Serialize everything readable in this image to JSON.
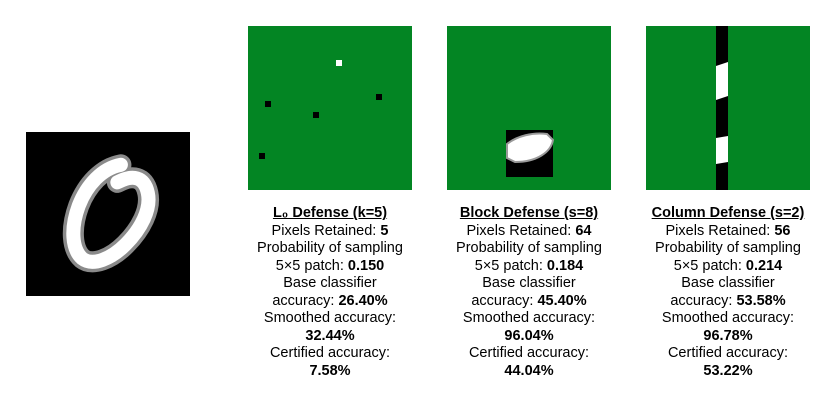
{
  "colors": {
    "green_mask": "#038523",
    "background": "#000000",
    "digit": "#ffffff"
  },
  "panels": [
    {
      "title": "L₀ Defense (k=5)",
      "pixels_label": "Pixels Retained: ",
      "pixels_value": "5",
      "prob_label_1": "Probability of sampling",
      "prob_label_2": "5×5 patch: ",
      "prob_value": "0.150",
      "base_label_1": "Base classifier",
      "base_label_2": "accuracy: ",
      "base_value": "26.40%",
      "smoothed_label": "Smoothed accuracy:",
      "smoothed_value": "32.44%",
      "certified_label": "Certified accuracy:",
      "certified_value": "7.58%"
    },
    {
      "title": "Block Defense (s=8)",
      "pixels_label": "Pixels Retained: ",
      "pixels_value": "64",
      "prob_label_1": "Probability of sampling",
      "prob_label_2": "5×5 patch: ",
      "prob_value": "0.184",
      "base_label_1": "Base classifier",
      "base_label_2": "accuracy: ",
      "base_value": "45.40%",
      "smoothed_label": "Smoothed accuracy:",
      "smoothed_value": "96.04%",
      "certified_label": "Certified accuracy:",
      "certified_value": "44.04%"
    },
    {
      "title": "Column Defense (s=2)",
      "pixels_label": "Pixels Retained: ",
      "pixels_value": "56",
      "prob_label_1": "Probability of sampling",
      "prob_label_2": "5×5 patch: ",
      "prob_value": "0.214",
      "base_label_1": "Base classifier",
      "base_label_2": "accuracy: ",
      "base_value": "53.58%",
      "smoothed_label": "Smoothed accuracy:",
      "smoothed_value": "96.78%",
      "certified_label": "Certified accuracy:",
      "certified_value": "53.22%"
    }
  ]
}
